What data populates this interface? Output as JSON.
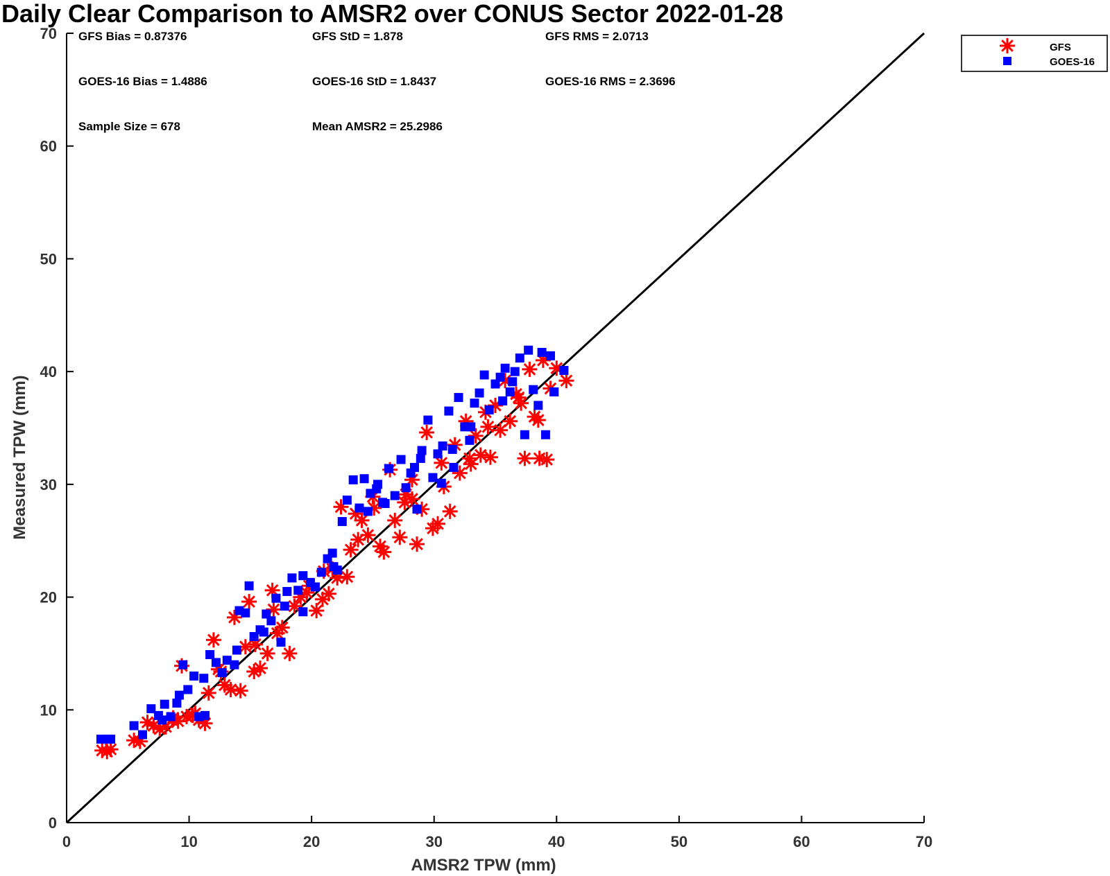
{
  "chart_data": {
    "type": "scatter",
    "title": "Daily Clear Comparison to AMSR2 over CONUS Sector 2022-01-28",
    "xlabel": "AMSR2 TPW (mm)",
    "ylabel": "Measured TPW (mm)",
    "xlim": [
      0,
      70
    ],
    "ylim": [
      0,
      70
    ],
    "xticks": [
      "0",
      "10",
      "20",
      "30",
      "40",
      "50",
      "60",
      "70"
    ],
    "yticks": [
      "0",
      "10",
      "20",
      "30",
      "40",
      "50",
      "60",
      "70"
    ],
    "grid": false,
    "legend_position": "outside top-right",
    "reference_line": {
      "x": [
        0,
        70
      ],
      "y": [
        0,
        70
      ]
    },
    "stats": {
      "gfs_bias": "GFS Bias = 0.87376",
      "gfs_std": "GFS StD = 1.878",
      "gfs_rms": "GFS RMS = 2.0713",
      "goes_bias": "GOES-16 Bias = 1.4886",
      "goes_std": "GOES-16 StD = 1.8437",
      "goes_rms": "GOES-16 RMS = 2.3696",
      "sample_size": "Sample Size = 678",
      "mean_amsr2": "Mean AMSR2 = 25.2986"
    },
    "series": [
      {
        "name": "GFS",
        "marker": "asterisk",
        "color": "#ff0000",
        "points": [
          [
            2.9,
            6.4
          ],
          [
            3.3,
            6.3
          ],
          [
            3.6,
            6.5
          ],
          [
            5.5,
            7.3
          ],
          [
            6.0,
            7.2
          ],
          [
            6.6,
            8.9
          ],
          [
            7.1,
            8.6
          ],
          [
            7.6,
            8.3
          ],
          [
            8.1,
            8.5
          ],
          [
            8.6,
            9.1
          ],
          [
            9.1,
            9.0
          ],
          [
            9.4,
            13.9
          ],
          [
            9.8,
            9.4
          ],
          [
            10.3,
            9.5
          ],
          [
            10.8,
            9.1
          ],
          [
            11.3,
            8.8
          ],
          [
            11.6,
            11.5
          ],
          [
            12.0,
            16.2
          ],
          [
            12.4,
            13.6
          ],
          [
            12.9,
            12.2
          ],
          [
            13.4,
            11.8
          ],
          [
            13.7,
            18.2
          ],
          [
            14.2,
            11.7
          ],
          [
            14.6,
            15.6
          ],
          [
            14.9,
            19.6
          ],
          [
            15.3,
            13.4
          ],
          [
            15.8,
            13.7
          ],
          [
            16.4,
            15.0
          ],
          [
            16.8,
            20.6
          ],
          [
            17.2,
            16.8
          ],
          [
            17.6,
            17.3
          ],
          [
            18.2,
            15.0
          ],
          [
            18.6,
            19.2
          ],
          [
            19.1,
            20.0
          ],
          [
            19.8,
            21.0
          ],
          [
            20.4,
            18.8
          ],
          [
            20.9,
            19.8
          ],
          [
            21.4,
            20.3
          ],
          [
            21.7,
            22.5
          ],
          [
            22.1,
            21.7
          ],
          [
            22.4,
            28.0
          ],
          [
            22.9,
            21.8
          ],
          [
            23.2,
            24.2
          ],
          [
            23.6,
            27.4
          ],
          [
            24.1,
            26.8
          ],
          [
            24.6,
            25.5
          ],
          [
            25.1,
            27.9
          ],
          [
            25.6,
            24.5
          ],
          [
            25.9,
            24.0
          ],
          [
            26.4,
            31.3
          ],
          [
            26.8,
            26.8
          ],
          [
            27.2,
            25.3
          ],
          [
            27.6,
            28.4
          ],
          [
            28.2,
            28.7
          ],
          [
            28.6,
            24.7
          ],
          [
            29.0,
            27.8
          ],
          [
            29.4,
            34.6
          ],
          [
            29.9,
            26.1
          ],
          [
            30.3,
            26.5
          ],
          [
            30.8,
            29.8
          ],
          [
            31.3,
            27.6
          ],
          [
            31.7,
            33.5
          ],
          [
            32.1,
            31.0
          ],
          [
            32.6,
            35.6
          ],
          [
            33.0,
            31.8
          ],
          [
            33.4,
            34.3
          ],
          [
            33.8,
            32.6
          ],
          [
            34.2,
            36.4
          ],
          [
            34.6,
            32.4
          ],
          [
            35.0,
            37.0
          ],
          [
            35.4,
            34.8
          ],
          [
            35.8,
            39.2
          ],
          [
            36.2,
            35.6
          ],
          [
            36.7,
            38.0
          ],
          [
            37.1,
            37.2
          ],
          [
            37.4,
            32.3
          ],
          [
            37.8,
            40.2
          ],
          [
            38.2,
            36.0
          ],
          [
            38.5,
            35.7
          ],
          [
            38.6,
            32.3
          ],
          [
            38.9,
            41.0
          ],
          [
            39.2,
            32.2
          ],
          [
            39.5,
            38.5
          ],
          [
            40.0,
            40.3
          ],
          [
            40.8,
            39.2
          ],
          [
            32.9,
            32.3
          ],
          [
            28.2,
            30.4
          ],
          [
            25.0,
            28.9
          ],
          [
            19.6,
            20.4
          ],
          [
            16.9,
            18.9
          ],
          [
            10.5,
            9.7
          ],
          [
            8.7,
            9.3
          ],
          [
            30.6,
            31.9
          ],
          [
            34.4,
            35.1
          ],
          [
            23.8,
            25.1
          ],
          [
            21.0,
            22.3
          ],
          [
            15.4,
            15.8
          ],
          [
            12.6,
            13.4
          ],
          [
            36.9,
            37.7
          ],
          [
            27.7,
            29.1
          ]
        ]
      },
      {
        "name": "GOES-16",
        "marker": "square",
        "color": "#0000ff",
        "points": [
          [
            2.8,
            7.4
          ],
          [
            3.3,
            7.4
          ],
          [
            3.6,
            7.4
          ],
          [
            5.5,
            8.6
          ],
          [
            6.2,
            7.8
          ],
          [
            6.9,
            10.1
          ],
          [
            7.5,
            9.5
          ],
          [
            8.0,
            10.5
          ],
          [
            8.5,
            9.4
          ],
          [
            9.0,
            10.6
          ],
          [
            9.5,
            14.0
          ],
          [
            9.9,
            11.8
          ],
          [
            10.4,
            13.0
          ],
          [
            10.8,
            9.4
          ],
          [
            11.3,
            9.5
          ],
          [
            11.7,
            14.9
          ],
          [
            12.2,
            14.2
          ],
          [
            12.7,
            13.3
          ],
          [
            13.1,
            14.4
          ],
          [
            13.7,
            14.0
          ],
          [
            14.1,
            18.8
          ],
          [
            14.6,
            18.6
          ],
          [
            14.9,
            21.0
          ],
          [
            15.3,
            16.5
          ],
          [
            15.8,
            17.1
          ],
          [
            16.3,
            18.5
          ],
          [
            16.7,
            17.9
          ],
          [
            17.1,
            19.9
          ],
          [
            17.5,
            16.0
          ],
          [
            18.0,
            20.5
          ],
          [
            18.4,
            21.7
          ],
          [
            18.9,
            20.6
          ],
          [
            19.3,
            18.7
          ],
          [
            19.9,
            21.3
          ],
          [
            20.3,
            20.9
          ],
          [
            20.8,
            22.2
          ],
          [
            21.3,
            23.4
          ],
          [
            21.8,
            22.7
          ],
          [
            22.1,
            22.4
          ],
          [
            22.5,
            26.7
          ],
          [
            22.9,
            28.6
          ],
          [
            23.4,
            30.4
          ],
          [
            23.9,
            27.9
          ],
          [
            24.3,
            30.5
          ],
          [
            24.8,
            29.2
          ],
          [
            25.4,
            30.0
          ],
          [
            25.8,
            28.4
          ],
          [
            26.3,
            31.4
          ],
          [
            26.8,
            29.0
          ],
          [
            27.3,
            32.2
          ],
          [
            27.7,
            29.7
          ],
          [
            28.1,
            31.0
          ],
          [
            28.6,
            27.8
          ],
          [
            29.0,
            33.0
          ],
          [
            29.5,
            35.7
          ],
          [
            29.9,
            30.6
          ],
          [
            30.3,
            32.7
          ],
          [
            30.7,
            33.4
          ],
          [
            31.2,
            36.5
          ],
          [
            31.6,
            31.5
          ],
          [
            32.0,
            37.7
          ],
          [
            32.5,
            35.1
          ],
          [
            32.9,
            33.9
          ],
          [
            33.3,
            37.2
          ],
          [
            33.7,
            38.1
          ],
          [
            34.1,
            39.7
          ],
          [
            34.5,
            36.6
          ],
          [
            35.0,
            38.9
          ],
          [
            35.4,
            39.5
          ],
          [
            35.8,
            40.3
          ],
          [
            36.2,
            38.2
          ],
          [
            36.6,
            40.0
          ],
          [
            37.0,
            41.2
          ],
          [
            37.4,
            34.4
          ],
          [
            37.7,
            41.9
          ],
          [
            38.1,
            38.4
          ],
          [
            38.5,
            37.0
          ],
          [
            38.8,
            41.7
          ],
          [
            39.1,
            34.4
          ],
          [
            39.5,
            41.4
          ],
          [
            39.8,
            38.2
          ],
          [
            40.6,
            40.1
          ],
          [
            28.4,
            31.5
          ],
          [
            30.6,
            30.1
          ],
          [
            26.0,
            28.3
          ],
          [
            24.6,
            27.6
          ],
          [
            33.0,
            35.1
          ],
          [
            35.6,
            37.4
          ],
          [
            19.3,
            21.9
          ],
          [
            17.8,
            19.2
          ],
          [
            16.1,
            16.9
          ],
          [
            11.2,
            12.8
          ],
          [
            9.2,
            11.3
          ],
          [
            21.7,
            23.9
          ],
          [
            31.5,
            33.1
          ],
          [
            36.4,
            39.1
          ],
          [
            28.9,
            32.3
          ],
          [
            25.3,
            29.6
          ],
          [
            13.9,
            15.3
          ],
          [
            7.8,
            9.1
          ]
        ]
      }
    ]
  }
}
